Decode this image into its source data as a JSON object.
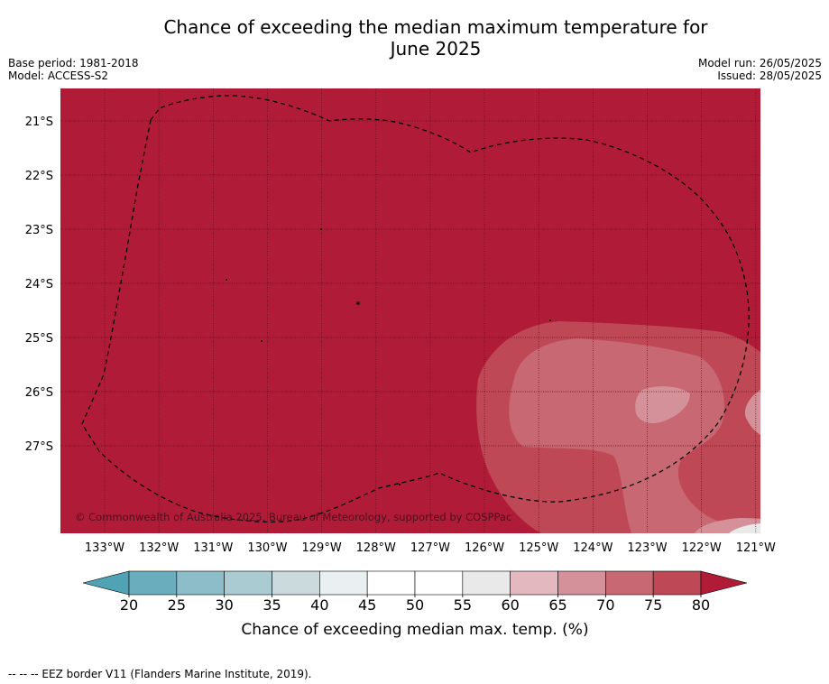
{
  "title_line1": "Chance of exceeding the median maximum temperature for",
  "title_line2": "June 2025",
  "base_period": "Base period: 1981-2018",
  "model": "Model: ACCESS-S2",
  "model_run": "Model run: 26/05/2025",
  "issued": "Issued: 28/05/2025",
  "copyright": "© Commonwealth of Australia 2025, Bureau of Meteorology, supported by COSPPac",
  "lat_labels": [
    "21°S",
    "22°S",
    "23°S",
    "24°S",
    "25°S",
    "26°S",
    "27°S"
  ],
  "lon_labels": [
    "133°W",
    "132°W",
    "131°W",
    "130°W",
    "129°W",
    "128°W",
    "127°W",
    "126°W",
    "125°W",
    "124°W",
    "123°W",
    "122°W",
    "121°W"
  ],
  "colorbar": {
    "ticks": [
      "20",
      "25",
      "30",
      "35",
      "40",
      "45",
      "50",
      "55",
      "60",
      "65",
      "70",
      "75",
      "80"
    ],
    "label": "Chance of exceeding median max. temp. (%)",
    "colors": {
      "below20": "#4fa3b4",
      "20-25": "#6aaebd",
      "25-30": "#8cbdc8",
      "30-35": "#a9cbd1",
      "35-40": "#cbdadd",
      "40-45": "#eaf0f1",
      "45-50": "#ffffff",
      "50-55": "#ffffff",
      "55-60": "#e9e9e9",
      "60-65": "#e3b8be",
      "65-70": "#d4919a",
      "70-75": "#c86872",
      "75-80": "#bf4856",
      "above80": "#b01c37"
    }
  },
  "legend_note": "--  --  -- EEZ border V11 (Flanders Marine Institute, 2019)."
}
